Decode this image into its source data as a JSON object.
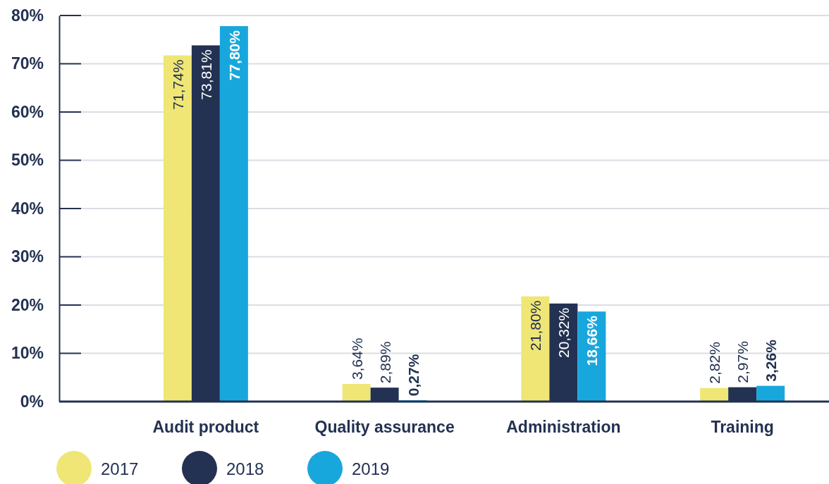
{
  "chart_data": {
    "type": "bar",
    "categories": [
      "Audit product",
      "Quality assurance",
      "Administration",
      "Training"
    ],
    "series": [
      {
        "name": "2017",
        "color": "#efe675",
        "values": [
          71.74,
          3.64,
          21.8,
          2.82
        ],
        "value_labels": [
          "71,74%",
          "3,64%",
          "21,80%",
          "2,82%"
        ]
      },
      {
        "name": "2018",
        "color": "#233152",
        "values": [
          73.81,
          2.89,
          20.32,
          2.97
        ],
        "value_labels": [
          "73,81%",
          "2,89%",
          "20,32%",
          "2,97%"
        ]
      },
      {
        "name": "2019",
        "color": "#18a7dd",
        "values": [
          77.8,
          0.27,
          18.66,
          3.26
        ],
        "value_labels": [
          "77,80%",
          "0,27%",
          "18,66%",
          "3,26%"
        ]
      }
    ],
    "ylim": [
      0,
      80
    ],
    "yticks": [
      {
        "value": 0,
        "label": "0%"
      },
      {
        "value": 10,
        "label": "10%"
      },
      {
        "value": 20,
        "label": "20%"
      },
      {
        "value": 30,
        "label": "30%"
      },
      {
        "value": 40,
        "label": "40%"
      },
      {
        "value": 50,
        "label": "50%"
      },
      {
        "value": 60,
        "label": "60%"
      },
      {
        "value": 70,
        "label": "70%"
      },
      {
        "value": 80,
        "label": "80%"
      }
    ],
    "grid": "y",
    "legend": "bottom"
  }
}
